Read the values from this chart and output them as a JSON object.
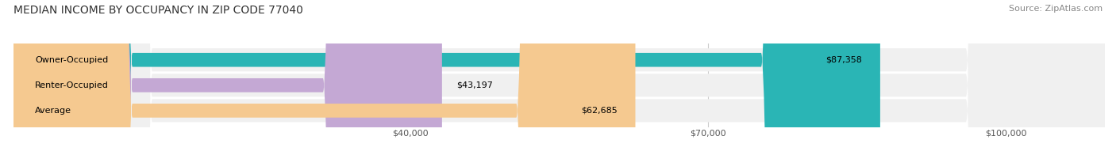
{
  "title": "MEDIAN INCOME BY OCCUPANCY IN ZIP CODE 77040",
  "source": "Source: ZipAtlas.com",
  "categories": [
    "Owner-Occupied",
    "Renter-Occupied",
    "Average"
  ],
  "values": [
    87358,
    43197,
    62685
  ],
  "labels": [
    "$87,358",
    "$43,197",
    "$62,685"
  ],
  "bar_colors": [
    "#2ab5b5",
    "#c4a8d4",
    "#f5c990"
  ],
  "xlim": [
    0,
    110000
  ],
  "xticks": [
    40000,
    70000,
    100000
  ],
  "xtick_labels": [
    "$40,000",
    "$70,000",
    "$100,000"
  ],
  "title_fontsize": 10,
  "source_fontsize": 8,
  "label_fontsize": 8,
  "value_fontsize": 8,
  "tick_fontsize": 8,
  "background_color": "#ffffff",
  "bar_height": 0.55,
  "row_bg_color": "#f0f0f0"
}
